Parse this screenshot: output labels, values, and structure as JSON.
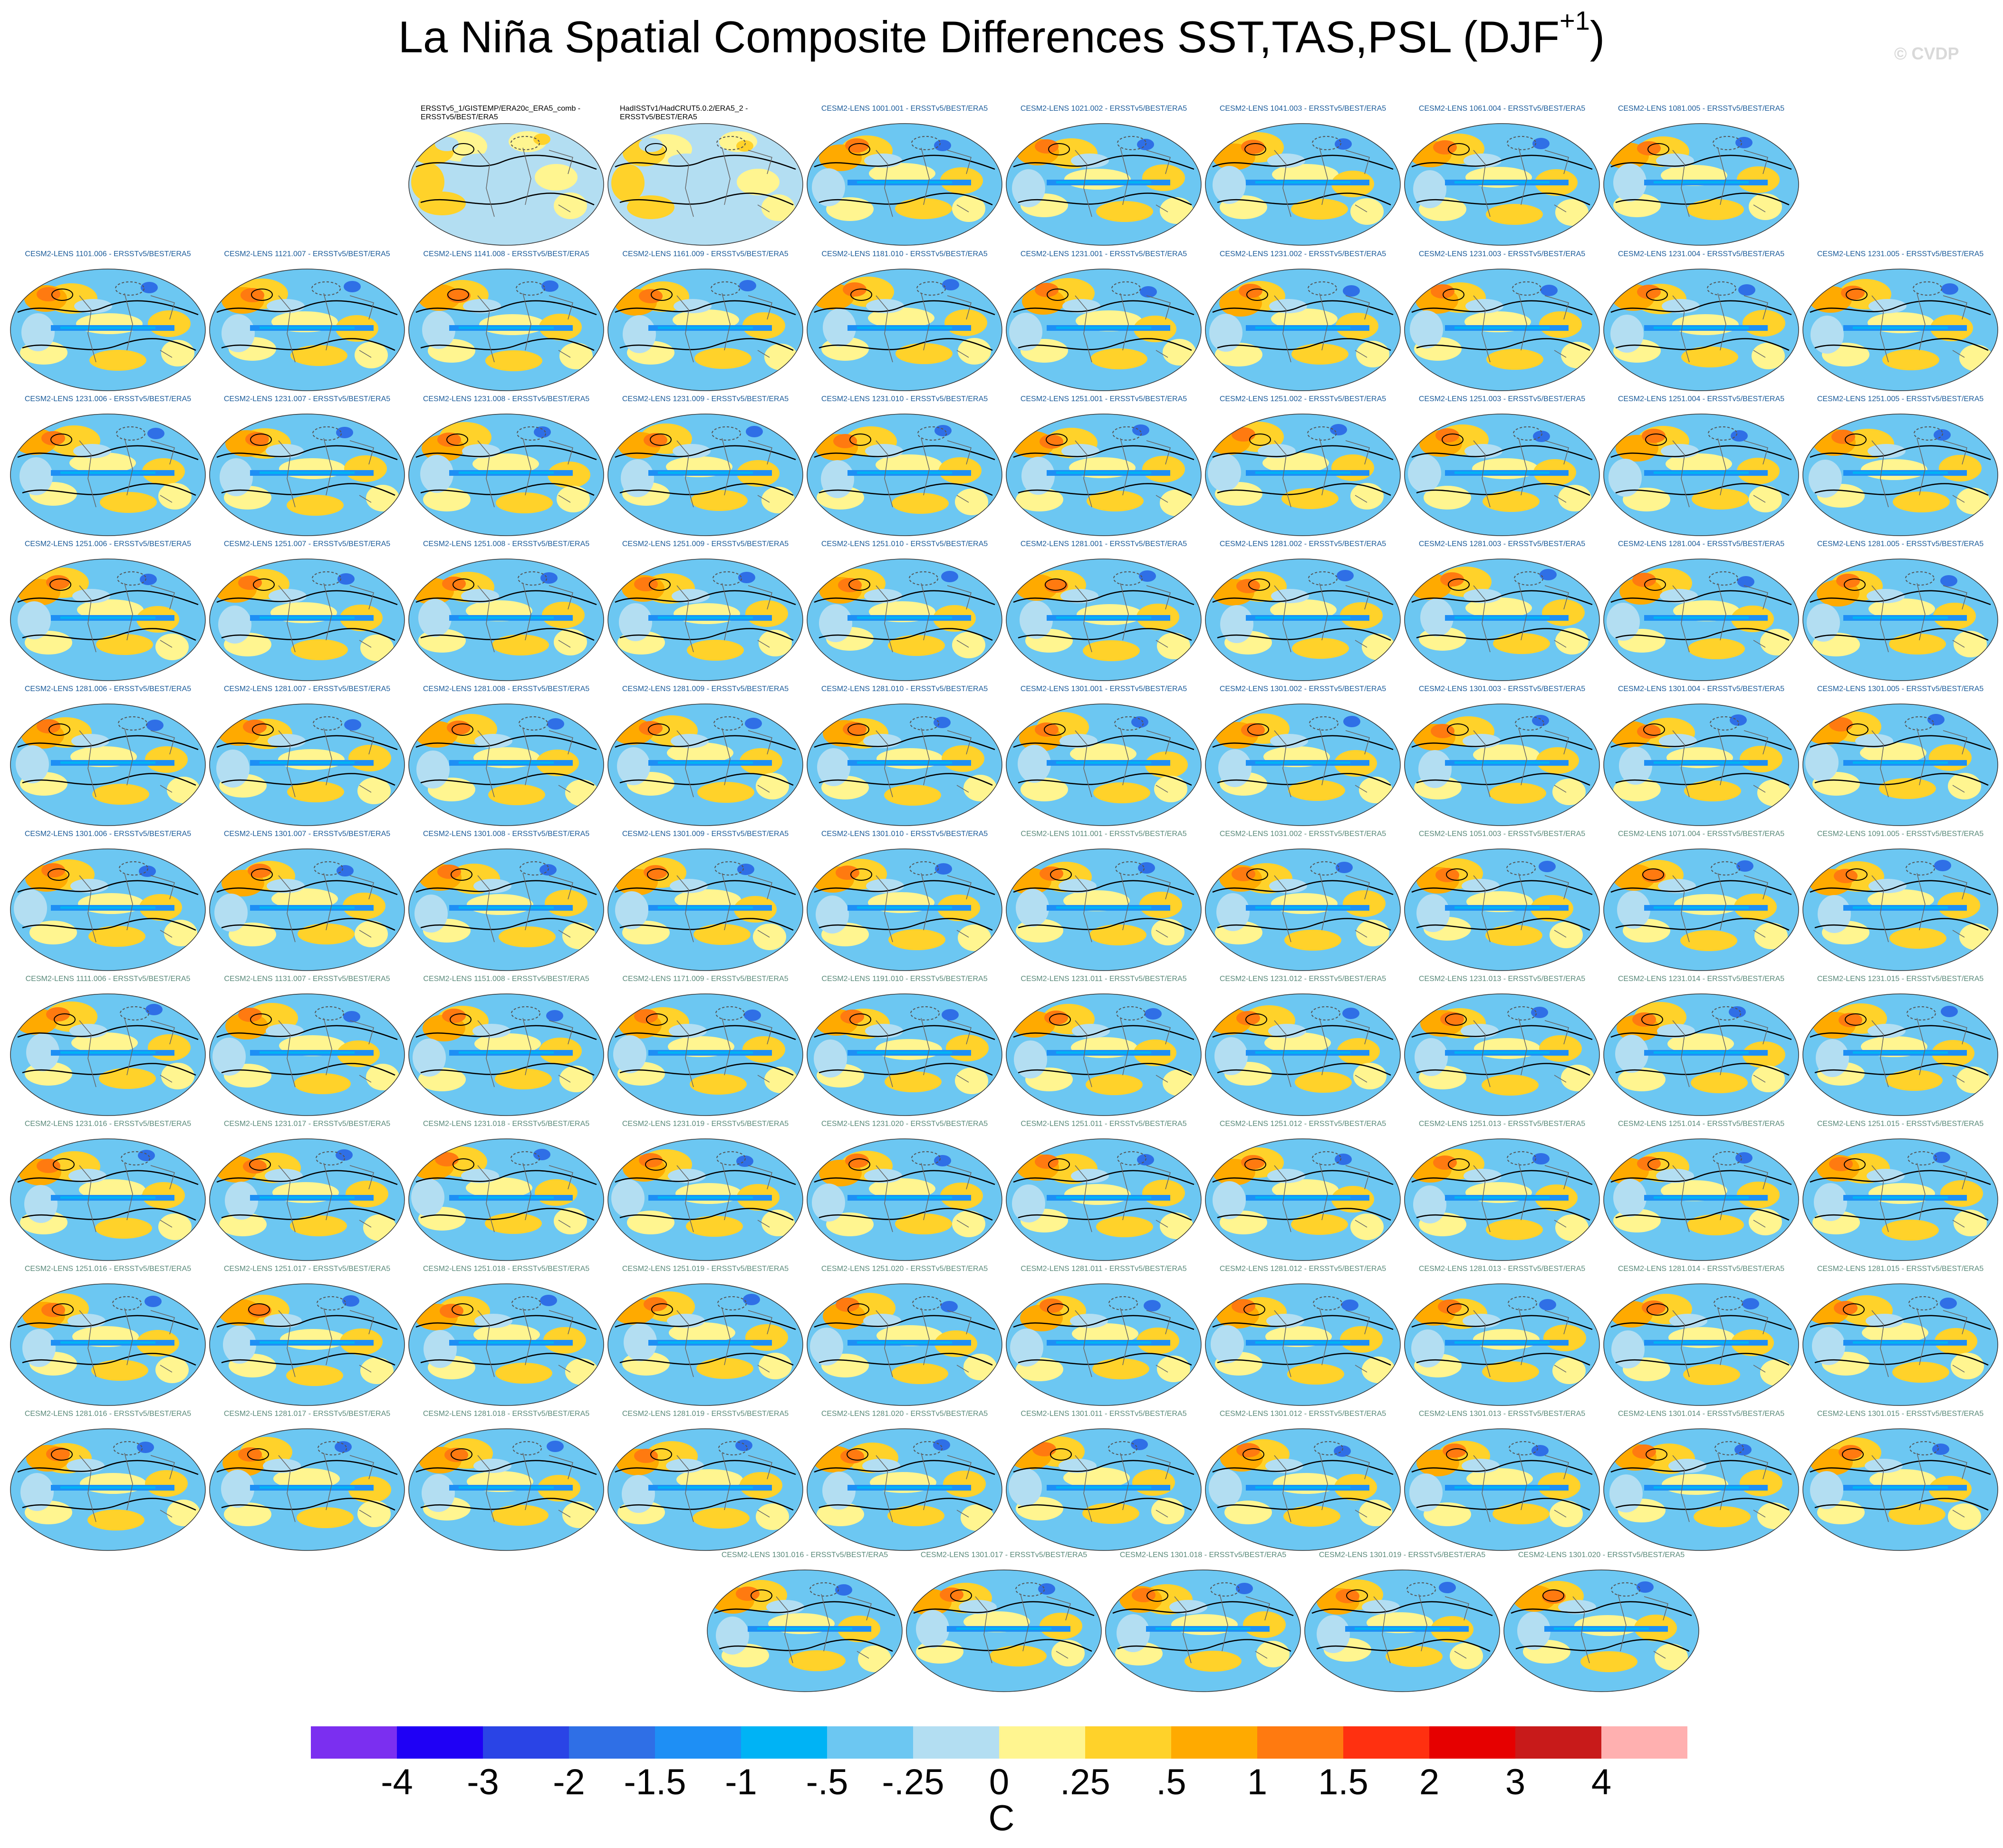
{
  "title": {
    "text": "La Niña Spatial Composite Differences SST,TAS,PSL (DJF",
    "superscript": "+1",
    "close": ")"
  },
  "copyright": "© CVDP",
  "panels": [
    "ERSSTv5_1/GISTEMP/ERA20c_ERA5_comb - ERSSTv5/BEST/ERA5",
    "HadISSTv1/HadCRUT5.0.2/ERA5_2 - ERSSTv5/BEST/ERA5",
    "CESM2-LENS 1001.001 - ERSSTv5/BEST/ERA5",
    "CESM2-LENS 1021.002 - ERSSTv5/BEST/ERA5",
    "CESM2-LENS 1041.003 - ERSSTv5/BEST/ERA5",
    "CESM2-LENS 1061.004 - ERSSTv5/BEST/ERA5",
    "CESM2-LENS 1081.005 - ERSSTv5/BEST/ERA5",
    "CESM2-LENS 1101.006 - ERSSTv5/BEST/ERA5",
    "CESM2-LENS 1121.007 - ERSSTv5/BEST/ERA5",
    "CESM2-LENS 1141.008 - ERSSTv5/BEST/ERA5",
    "CESM2-LENS 1161.009 - ERSSTv5/BEST/ERA5",
    "CESM2-LENS 1181.010 - ERSSTv5/BEST/ERA5",
    "CESM2-LENS 1231.001 - ERSSTv5/BEST/ERA5",
    "CESM2-LENS 1231.002 - ERSSTv5/BEST/ERA5",
    "CESM2-LENS 1231.003 - ERSSTv5/BEST/ERA5",
    "CESM2-LENS 1231.004 - ERSSTv5/BEST/ERA5",
    "CESM2-LENS 1231.005 - ERSSTv5/BEST/ERA5",
    "CESM2-LENS 1231.006 - ERSSTv5/BEST/ERA5",
    "CESM2-LENS 1231.007 - ERSSTv5/BEST/ERA5",
    "CESM2-LENS 1231.008 - ERSSTv5/BEST/ERA5",
    "CESM2-LENS 1231.009 - ERSSTv5/BEST/ERA5",
    "CESM2-LENS 1231.010 - ERSSTv5/BEST/ERA5",
    "CESM2-LENS 1251.001 - ERSSTv5/BEST/ERA5",
    "CESM2-LENS 1251.002 - ERSSTv5/BEST/ERA5",
    "CESM2-LENS 1251.003 - ERSSTv5/BEST/ERA5",
    "CESM2-LENS 1251.004 - ERSSTv5/BEST/ERA5",
    "CESM2-LENS 1251.005 - ERSSTv5/BEST/ERA5",
    "CESM2-LENS 1251.006 - ERSSTv5/BEST/ERA5",
    "CESM2-LENS 1251.007 - ERSSTv5/BEST/ERA5",
    "CESM2-LENS 1251.008 - ERSSTv5/BEST/ERA5",
    "CESM2-LENS 1251.009 - ERSSTv5/BEST/ERA5",
    "CESM2-LENS 1251.010 - ERSSTv5/BEST/ERA5",
    "CESM2-LENS 1281.001 - ERSSTv5/BEST/ERA5",
    "CESM2-LENS 1281.002 - ERSSTv5/BEST/ERA5",
    "CESM2-LENS 1281.003 - ERSSTv5/BEST/ERA5",
    "CESM2-LENS 1281.004 - ERSSTv5/BEST/ERA5",
    "CESM2-LENS 1281.005 - ERSSTv5/BEST/ERA5",
    "CESM2-LENS 1281.006 - ERSSTv5/BEST/ERA5",
    "CESM2-LENS 1281.007 - ERSSTv5/BEST/ERA5",
    "CESM2-LENS 1281.008 - ERSSTv5/BEST/ERA5",
    "CESM2-LENS 1281.009 - ERSSTv5/BEST/ERA5",
    "CESM2-LENS 1281.010 - ERSSTv5/BEST/ERA5",
    "CESM2-LENS 1301.001 - ERSSTv5/BEST/ERA5",
    "CESM2-LENS 1301.002 - ERSSTv5/BEST/ERA5",
    "CESM2-LENS 1301.003 - ERSSTv5/BEST/ERA5",
    "CESM2-LENS 1301.004 - ERSSTv5/BEST/ERA5",
    "CESM2-LENS 1301.005 - ERSSTv5/BEST/ERA5",
    "CESM2-LENS 1301.006 - ERSSTv5/BEST/ERA5",
    "CESM2-LENS 1301.007 - ERSSTv5/BEST/ERA5",
    "CESM2-LENS 1301.008 - ERSSTv5/BEST/ERA5",
    "CESM2-LENS 1301.009 - ERSSTv5/BEST/ERA5",
    "CESM2-LENS 1301.010 - ERSSTv5/BEST/ERA5",
    "CESM2-LENS 1011.001 - ERSSTv5/BEST/ERA5",
    "CESM2-LENS 1031.002 - ERSSTv5/BEST/ERA5",
    "CESM2-LENS 1051.003 - ERSSTv5/BEST/ERA5",
    "CESM2-LENS 1071.004 - ERSSTv5/BEST/ERA5",
    "CESM2-LENS 1091.005 - ERSSTv5/BEST/ERA5",
    "CESM2-LENS 1111.006 - ERSSTv5/BEST/ERA5",
    "CESM2-LENS 1131.007 - ERSSTv5/BEST/ERA5",
    "CESM2-LENS 1151.008 - ERSSTv5/BEST/ERA5",
    "CESM2-LENS 1171.009 - ERSSTv5/BEST/ERA5",
    "CESM2-LENS 1191.010 - ERSSTv5/BEST/ERA5",
    "CESM2-LENS 1231.011 - ERSSTv5/BEST/ERA5",
    "CESM2-LENS 1231.012 - ERSSTv5/BEST/ERA5",
    "CESM2-LENS 1231.013 - ERSSTv5/BEST/ERA5",
    "CESM2-LENS 1231.014 - ERSSTv5/BEST/ERA5",
    "CESM2-LENS 1231.015 - ERSSTv5/BEST/ERA5",
    "CESM2-LENS 1231.016 - ERSSTv5/BEST/ERA5",
    "CESM2-LENS 1231.017 - ERSSTv5/BEST/ERA5",
    "CESM2-LENS 1231.018 - ERSSTv5/BEST/ERA5",
    "CESM2-LENS 1231.019 - ERSSTv5/BEST/ERA5",
    "CESM2-LENS 1231.020 - ERSSTv5/BEST/ERA5",
    "CESM2-LENS 1251.011 - ERSSTv5/BEST/ERA5",
    "CESM2-LENS 1251.012 - ERSSTv5/BEST/ERA5",
    "CESM2-LENS 1251.013 - ERSSTv5/BEST/ERA5",
    "CESM2-LENS 1251.014 - ERSSTv5/BEST/ERA5",
    "CESM2-LENS 1251.015 - ERSSTv5/BEST/ERA5",
    "CESM2-LENS 1251.016 - ERSSTv5/BEST/ERA5",
    "CESM2-LENS 1251.017 - ERSSTv5/BEST/ERA5",
    "CESM2-LENS 1251.018 - ERSSTv5/BEST/ERA5",
    "CESM2-LENS 1251.019 - ERSSTv5/BEST/ERA5",
    "CESM2-LENS 1251.020 - ERSSTv5/BEST/ERA5",
    "CESM2-LENS 1281.011 - ERSSTv5/BEST/ERA5",
    "CESM2-LENS 1281.012 - ERSSTv5/BEST/ERA5",
    "CESM2-LENS 1281.013 - ERSSTv5/BEST/ERA5",
    "CESM2-LENS 1281.014 - ERSSTv5/BEST/ERA5",
    "CESM2-LENS 1281.015 - ERSSTv5/BEST/ERA5",
    "CESM2-LENS 1281.016 - ERSSTv5/BEST/ERA5",
    "CESM2-LENS 1281.017 - ERSSTv5/BEST/ERA5",
    "CESM2-LENS 1281.018 - ERSSTv5/BEST/ERA5",
    "CESM2-LENS 1281.019 - ERSSTv5/BEST/ERA5",
    "CESM2-LENS 1281.020 - ERSSTv5/BEST/ERA5",
    "CESM2-LENS 1301.011 - ERSSTv5/BEST/ERA5",
    "CESM2-LENS 1301.012 - ERSSTv5/BEST/ERA5",
    "CESM2-LENS 1301.013 - ERSSTv5/BEST/ERA5",
    "CESM2-LENS 1301.014 - ERSSTv5/BEST/ERA5",
    "CESM2-LENS 1301.015 - ERSSTv5/BEST/ERA5",
    "CESM2-LENS 1301.016 - ERSSTv5/BEST/ERA5",
    "CESM2-LENS 1301.017 - ERSSTv5/BEST/ERA5",
    "CESM2-LENS 1301.018 - ERSSTv5/BEST/ERA5",
    "CESM2-LENS 1301.019 - ERSSTv5/BEST/ERA5",
    "CESM2-LENS 1301.020 - ERSSTv5/BEST/ERA5"
  ],
  "colorbar": {
    "colors": [
      "#7b2ff0",
      "#1f00f5",
      "#2a44e6",
      "#2f6fe6",
      "#1e8ff5",
      "#00b3f5",
      "#6cc7f2",
      "#b3def2",
      "#fff590",
      "#ffd22a",
      "#ffaa00",
      "#ff7a10",
      "#ff3010",
      "#e60000",
      "#c81a1a",
      "#ffb0b0"
    ],
    "ticks": [
      "-4",
      "-3",
      "-2",
      "-1.5",
      "-1",
      "-.5",
      "-.25",
      "0",
      ".25",
      ".5",
      "1",
      "1.5",
      "2",
      "3",
      "4"
    ],
    "units": "C"
  }
}
